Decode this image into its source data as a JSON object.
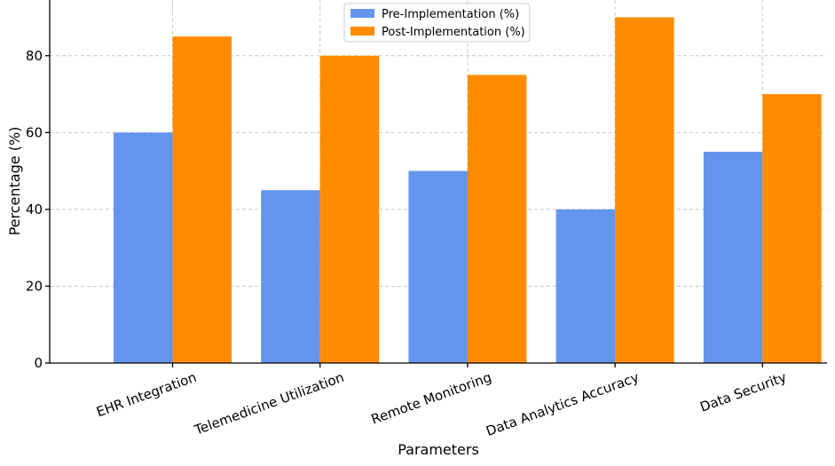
{
  "chart_data": {
    "type": "bar",
    "categories": [
      "EHR Integration",
      "Telemedicine Utilization",
      "Remote Monitoring",
      "Data Analytics Accuracy",
      "Data Security"
    ],
    "series": [
      {
        "name": "Pre-Implementation (%)",
        "values": [
          60,
          45,
          50,
          40,
          55
        ],
        "color": "#6495ED"
      },
      {
        "name": "Post-Implementation (%)",
        "values": [
          85,
          80,
          75,
          90,
          70
        ],
        "color": "#FF8C00"
      }
    ],
    "title": "",
    "xlabel": "Parameters",
    "ylabel": "Percentage (%)",
    "ylim": [
      0,
      94.5
    ],
    "yticks": [
      0,
      20,
      40,
      60,
      80
    ],
    "grid": true,
    "legend_position": "top-center"
  }
}
